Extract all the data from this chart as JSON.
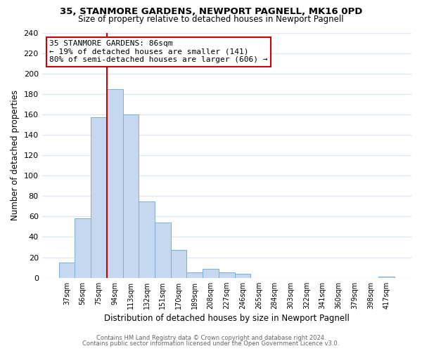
{
  "title": "35, STANMORE GARDENS, NEWPORT PAGNELL, MK16 0PD",
  "subtitle": "Size of property relative to detached houses in Newport Pagnell",
  "xlabel": "Distribution of detached houses by size in Newport Pagnell",
  "ylabel": "Number of detached properties",
  "bar_labels": [
    "37sqm",
    "56sqm",
    "75sqm",
    "94sqm",
    "113sqm",
    "132sqm",
    "151sqm",
    "170sqm",
    "189sqm",
    "208sqm",
    "227sqm",
    "246sqm",
    "265sqm",
    "284sqm",
    "303sqm",
    "322sqm",
    "341sqm",
    "360sqm",
    "379sqm",
    "398sqm",
    "417sqm"
  ],
  "bar_values": [
    15,
    58,
    157,
    185,
    160,
    75,
    54,
    27,
    5,
    9,
    5,
    4,
    0,
    0,
    0,
    0,
    0,
    0,
    0,
    0,
    1
  ],
  "bar_color": "#c5d8ef",
  "bar_edge_color": "#7aafd4",
  "vline_color": "#cc0000",
  "annotation_title": "35 STANMORE GARDENS: 86sqm",
  "annotation_line1": "← 19% of detached houses are smaller (141)",
  "annotation_line2": "80% of semi-detached houses are larger (606) →",
  "annotation_box_color": "#ffffff",
  "annotation_box_edge": "#cc0000",
  "ylim": [
    0,
    240
  ],
  "yticks": [
    0,
    20,
    40,
    60,
    80,
    100,
    120,
    140,
    160,
    180,
    200,
    220,
    240
  ],
  "background_color": "#ffffff",
  "grid_color": "#dde8f0",
  "footer1": "Contains HM Land Registry data © Crown copyright and database right 2024.",
  "footer2": "Contains public sector information licensed under the Open Government Licence v3.0."
}
